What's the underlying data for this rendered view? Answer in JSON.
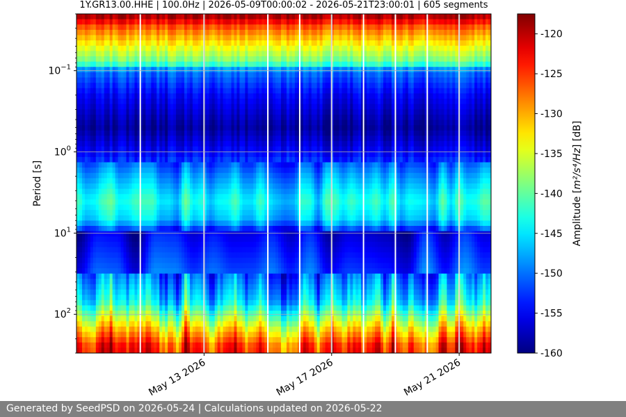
{
  "chart_data": {
    "type": "heatmap",
    "title": "1Y.GR13.00.HHE | 100.0Hz | 2026-05-09T00:00:02 - 2026-05-21T23:00:01 | 605 segments",
    "xlabel": "",
    "ylabel": "Period [s]",
    "colorbar_label_main": "Amplitude",
    "colorbar_label_unit": "m²/s⁴/Hz",
    "colorbar_label_db": "[dB]",
    "x_range": [
      "2026-05-09T00:00:00",
      "2026-05-22T00:00:00"
    ],
    "x_ticks": [
      {
        "date": "2026-05-13",
        "label": "May 13 2026"
      },
      {
        "date": "2026-05-17",
        "label": "May 17 2026"
      },
      {
        "date": "2026-05-21",
        "label": "May 21 2026"
      }
    ],
    "y_scale": "log",
    "y_inverted": true,
    "y_range": [
      0.02,
      300
    ],
    "y_ticks": [
      {
        "value": 0.1,
        "base": "10",
        "exp": "−1"
      },
      {
        "value": 1,
        "base": "10",
        "exp": "0"
      },
      {
        "value": 10,
        "base": "10",
        "exp": "1"
      },
      {
        "value": 100,
        "base": "10",
        "exp": "2"
      }
    ],
    "color_range": [
      -160,
      -117.5
    ],
    "colorbar_ticks": [
      "-120",
      "-125",
      "-130",
      "-135",
      "-140",
      "-145",
      "-150",
      "-155",
      "-160"
    ],
    "colormap": "jet",
    "grid": true,
    "segments": 605,
    "data_gaps_dates": [
      "2026-05-11",
      "2026-05-13",
      "2026-05-15",
      "2026-05-16",
      "2026-05-17",
      "2026-05-18",
      "2026-05-19",
      "2026-05-20",
      "2026-05-21"
    ],
    "mean_profile": [
      {
        "period": 0.02,
        "db": -118
      },
      {
        "period": 0.03,
        "db": -127
      },
      {
        "period": 0.05,
        "db": -134
      },
      {
        "period": 0.08,
        "db": -140
      },
      {
        "period": 0.1,
        "db": -150
      },
      {
        "period": 0.2,
        "db": -155
      },
      {
        "period": 0.5,
        "db": -159
      },
      {
        "period": 1,
        "db": -155
      },
      {
        "period": 2,
        "db": -149
      },
      {
        "period": 4,
        "db": -144
      },
      {
        "period": 7,
        "db": -147
      },
      {
        "period": 10,
        "db": -156
      },
      {
        "period": 30,
        "db": -152
      },
      {
        "period": 70,
        "db": -146
      },
      {
        "period": 100,
        "db": -140
      },
      {
        "period": 150,
        "db": -133
      },
      {
        "period": 250,
        "db": -125
      }
    ]
  },
  "footer": {
    "text": "Generated by SeedPSD on 2026-05-24 | Calculations updated on 2026-05-22"
  }
}
